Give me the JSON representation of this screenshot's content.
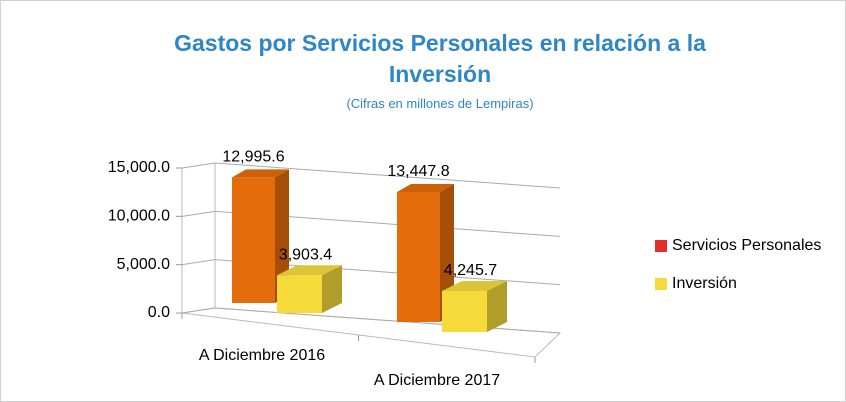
{
  "chart_data": {
    "type": "bar3d",
    "title": "Gastos por Servicios Personales en relación a la Inversión",
    "subtitle": "(Cifras en millones de Lempiras)",
    "categories": [
      "A Diciembre 2016",
      "A Diciembre 2017"
    ],
    "series": [
      {
        "name": "Servicios Personales",
        "color": "#e46c0a",
        "legend_color": "#e0302a",
        "values": [
          12995.6,
          13447.8
        ],
        "value_labels": [
          "12,995.6",
          "13,447.8"
        ]
      },
      {
        "name": "Inversión",
        "color": "#f5da3a",
        "legend_color": "#f5da3a",
        "values": [
          3903.4,
          4245.7
        ],
        "value_labels": [
          "3,903.4",
          "4,245.7"
        ]
      }
    ],
    "ylim": [
      0,
      15000
    ],
    "yticks": [
      {
        "value": 0,
        "label": "0.0"
      },
      {
        "value": 5000,
        "label": "5,000.0"
      },
      {
        "value": 10000,
        "label": "10,000.0"
      },
      {
        "value": 15000,
        "label": "15,000.0"
      }
    ],
    "grid": true,
    "legend": "right"
  }
}
